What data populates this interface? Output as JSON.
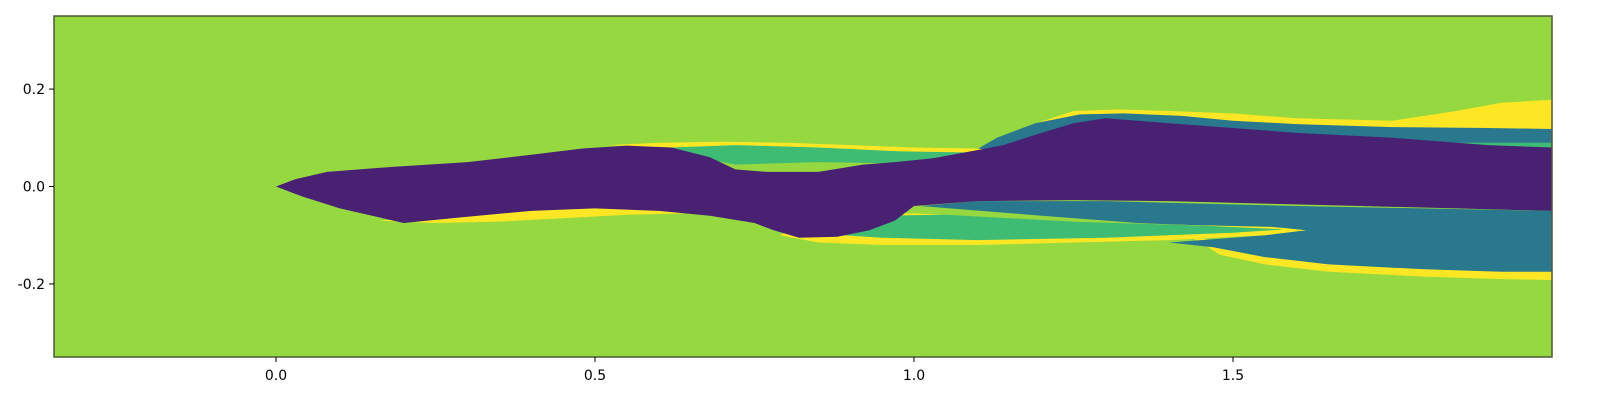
{
  "chart_data": {
    "type": "heatmap",
    "title": "",
    "xlabel": "",
    "ylabel": "",
    "xlim": [
      -0.348,
      2.0
    ],
    "ylim": [
      -0.35,
      0.35
    ],
    "x_ticks": [
      {
        "value": 0.0,
        "label": "0.0"
      },
      {
        "value": 0.5,
        "label": "0.5"
      },
      {
        "value": 1.0,
        "label": "1.0"
      },
      {
        "value": 1.5,
        "label": "1.5"
      }
    ],
    "y_ticks": [
      {
        "value": 0.2,
        "label": "0.2"
      },
      {
        "value": 0.0,
        "label": "0.0"
      },
      {
        "value": -0.2,
        "label": "-0.2"
      }
    ],
    "grid": false,
    "legend": "none",
    "colormap": "viridis",
    "colors": {
      "background": "#95d840",
      "dark": "#482173",
      "teal": "#2a788e",
      "green": "#3fbc73",
      "yellow": "#fde725",
      "frame": "#4d5a35"
    },
    "regions": [
      {
        "name": "upper-yellow-sheet",
        "fill": "yellow",
        "polygon": [
          [
            1.12,
            0.075
          ],
          [
            1.18,
            0.125
          ],
          [
            1.25,
            0.155
          ],
          [
            1.32,
            0.158
          ],
          [
            1.4,
            0.155
          ],
          [
            1.5,
            0.15
          ],
          [
            1.6,
            0.14
          ],
          [
            1.75,
            0.135
          ],
          [
            1.85,
            0.155
          ],
          [
            1.92,
            0.172
          ],
          [
            2.0,
            0.178
          ],
          [
            2.0,
            0.1
          ],
          [
            1.8,
            0.11
          ],
          [
            1.65,
            0.12
          ],
          [
            1.5,
            0.125
          ],
          [
            1.4,
            0.1
          ],
          [
            1.3,
            0.085
          ],
          [
            1.2,
            0.075
          ]
        ]
      },
      {
        "name": "upper-wake-region",
        "fill": "teal",
        "polygon": [
          [
            1.09,
            0.07
          ],
          [
            1.13,
            0.1
          ],
          [
            1.19,
            0.13
          ],
          [
            1.26,
            0.148
          ],
          [
            1.33,
            0.15
          ],
          [
            1.42,
            0.145
          ],
          [
            1.5,
            0.135
          ],
          [
            1.6,
            0.128
          ],
          [
            1.75,
            0.122
          ],
          [
            1.9,
            0.12
          ],
          [
            2.0,
            0.118
          ],
          [
            2.0,
            0.04
          ],
          [
            1.6,
            0.045
          ],
          [
            1.3,
            0.04
          ],
          [
            1.1,
            0.035
          ],
          [
            1.01,
            0.02
          ]
        ]
      },
      {
        "name": "upper-green-band",
        "fill": "green",
        "polygon": [
          [
            1.55,
            0.085
          ],
          [
            1.75,
            0.09
          ],
          [
            2.0,
            0.09
          ],
          [
            2.0,
            0.05
          ],
          [
            1.7,
            0.06
          ],
          [
            1.55,
            0.07
          ]
        ]
      },
      {
        "name": "lower-yellow-sheet",
        "fill": "yellow",
        "polygon": [
          [
            1.43,
            -0.1
          ],
          [
            1.48,
            -0.14
          ],
          [
            1.55,
            -0.16
          ],
          [
            1.65,
            -0.175
          ],
          [
            1.8,
            -0.185
          ],
          [
            1.92,
            -0.19
          ],
          [
            2.0,
            -0.192
          ],
          [
            2.0,
            -0.17
          ],
          [
            1.8,
            -0.165
          ],
          [
            1.65,
            -0.155
          ],
          [
            1.55,
            -0.14
          ],
          [
            1.48,
            -0.115
          ]
        ]
      },
      {
        "name": "lower-wake-region",
        "fill": "teal",
        "polygon": [
          [
            1.01,
            -0.04
          ],
          [
            1.2,
            -0.06
          ],
          [
            1.35,
            -0.075
          ],
          [
            1.45,
            -0.08
          ],
          [
            1.58,
            -0.085
          ],
          [
            1.61,
            -0.09
          ],
          [
            1.55,
            -0.1
          ],
          [
            1.45,
            -0.11
          ],
          [
            1.4,
            -0.115
          ],
          [
            1.47,
            -0.125
          ],
          [
            1.55,
            -0.145
          ],
          [
            1.65,
            -0.16
          ],
          [
            1.8,
            -0.17
          ],
          [
            1.92,
            -0.175
          ],
          [
            2.0,
            -0.175
          ],
          [
            2.0,
            -0.05
          ],
          [
            1.6,
            -0.04
          ],
          [
            1.3,
            -0.03
          ],
          [
            1.1,
            -0.03
          ]
        ]
      },
      {
        "name": "middle-lower-sheet",
        "fill": "yellow",
        "polygon": [
          [
            0.79,
            -0.1
          ],
          [
            0.85,
            -0.115
          ],
          [
            0.95,
            -0.12
          ],
          [
            1.1,
            -0.12
          ],
          [
            1.25,
            -0.115
          ],
          [
            1.4,
            -0.11
          ],
          [
            1.55,
            -0.1
          ],
          [
            1.615,
            -0.09
          ],
          [
            1.56,
            -0.083
          ],
          [
            1.4,
            -0.078
          ],
          [
            1.2,
            -0.07
          ],
          [
            1.0,
            -0.055
          ],
          [
            0.9,
            -0.06
          ],
          [
            0.82,
            -0.08
          ]
        ]
      },
      {
        "name": "middle-upper-sheet",
        "fill": "yellow",
        "polygon": [
          [
            0.52,
            0.085
          ],
          [
            0.6,
            0.09
          ],
          [
            0.7,
            0.092
          ],
          [
            0.8,
            0.09
          ],
          [
            0.9,
            0.085
          ],
          [
            1.0,
            0.08
          ],
          [
            1.1,
            0.078
          ],
          [
            1.12,
            0.075
          ],
          [
            1.05,
            0.062
          ],
          [
            0.96,
            0.05
          ],
          [
            0.85,
            0.055
          ],
          [
            0.75,
            0.062
          ],
          [
            0.65,
            0.075
          ],
          [
            0.58,
            0.082
          ]
        ]
      },
      {
        "name": "middle-upper-green",
        "fill": "green",
        "polygon": [
          [
            0.62,
            0.08
          ],
          [
            0.72,
            0.085
          ],
          [
            0.85,
            0.08
          ],
          [
            0.98,
            0.072
          ],
          [
            1.08,
            0.07
          ],
          [
            1.03,
            0.055
          ],
          [
            0.95,
            0.048
          ],
          [
            0.85,
            0.05
          ],
          [
            0.72,
            0.045
          ],
          [
            0.66,
            0.06
          ]
        ]
      },
      {
        "name": "middle-lower-green",
        "fill": "green",
        "polygon": [
          [
            0.83,
            -0.095
          ],
          [
            0.95,
            -0.105
          ],
          [
            1.1,
            -0.11
          ],
          [
            1.3,
            -0.105
          ],
          [
            1.5,
            -0.095
          ],
          [
            1.58,
            -0.088
          ],
          [
            1.45,
            -0.08
          ],
          [
            1.25,
            -0.072
          ],
          [
            1.05,
            -0.058
          ],
          [
            0.93,
            -0.06
          ],
          [
            0.86,
            -0.08
          ]
        ]
      },
      {
        "name": "front-lower-sheet",
        "fill": "yellow",
        "polygon": [
          [
            0.16,
            -0.07
          ],
          [
            0.25,
            -0.075
          ],
          [
            0.35,
            -0.072
          ],
          [
            0.45,
            -0.065
          ],
          [
            0.55,
            -0.058
          ],
          [
            0.64,
            -0.055
          ],
          [
            0.67,
            -0.058
          ],
          [
            0.62,
            -0.05
          ],
          [
            0.52,
            -0.04
          ],
          [
            0.4,
            -0.05
          ],
          [
            0.28,
            -0.06
          ]
        ]
      },
      {
        "name": "dense-core",
        "fill": "dark",
        "polygon": [
          [
            0.0,
            0.0
          ],
          [
            0.03,
            0.015
          ],
          [
            0.08,
            0.03
          ],
          [
            0.18,
            0.04
          ],
          [
            0.3,
            0.05
          ],
          [
            0.4,
            0.065
          ],
          [
            0.48,
            0.078
          ],
          [
            0.55,
            0.084
          ],
          [
            0.62,
            0.08
          ],
          [
            0.68,
            0.06
          ],
          [
            0.72,
            0.035
          ],
          [
            0.77,
            0.03
          ],
          [
            0.85,
            0.03
          ],
          [
            0.92,
            0.045
          ],
          [
            0.97,
            0.05
          ],
          [
            1.03,
            0.058
          ],
          [
            1.1,
            0.075
          ],
          [
            1.14,
            0.085
          ],
          [
            1.2,
            0.11
          ],
          [
            1.25,
            0.13
          ],
          [
            1.3,
            0.14
          ],
          [
            1.4,
            0.13
          ],
          [
            1.5,
            0.12
          ],
          [
            1.6,
            0.11
          ],
          [
            1.75,
            0.1
          ],
          [
            1.9,
            0.085
          ],
          [
            2.0,
            0.08
          ],
          [
            2.0,
            -0.05
          ],
          [
            1.85,
            -0.045
          ],
          [
            1.7,
            -0.04
          ],
          [
            1.55,
            -0.035
          ],
          [
            1.4,
            -0.03
          ],
          [
            1.25,
            -0.028
          ],
          [
            1.1,
            -0.03
          ],
          [
            1.0,
            -0.04
          ],
          [
            0.97,
            -0.07
          ],
          [
            0.93,
            -0.09
          ],
          [
            0.88,
            -0.103
          ],
          [
            0.82,
            -0.105
          ],
          [
            0.78,
            -0.09
          ],
          [
            0.75,
            -0.075
          ],
          [
            0.68,
            -0.06
          ],
          [
            0.6,
            -0.05
          ],
          [
            0.5,
            -0.045
          ],
          [
            0.4,
            -0.05
          ],
          [
            0.3,
            -0.062
          ],
          [
            0.2,
            -0.075
          ],
          [
            0.1,
            -0.045
          ],
          [
            0.04,
            -0.02
          ]
        ]
      }
    ]
  }
}
